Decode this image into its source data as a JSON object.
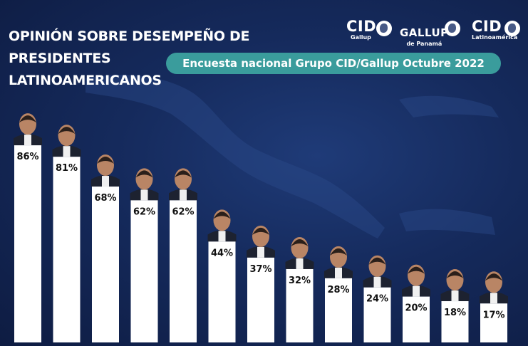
{
  "header": {
    "title_line1": "OPINIÓN SOBRE DESEMPEÑO DE PRESIDENTES",
    "title_line2": "LATINOAMERICANOS",
    "subtitle": "Encuesta nacional Grupo CID/Gallup Octubre 2022"
  },
  "logos": {
    "cid_gallup": {
      "name": "CID",
      "caption": "Gallup"
    },
    "gallup_panama": {
      "name": "GALLUP",
      "caption": "de Panamá"
    },
    "cid_latinoamerica": {
      "name": "CID",
      "caption": "Latinoamérica"
    }
  },
  "colors": {
    "background": "#152a5c",
    "bar": "#ffffff",
    "pill": "#3a9c9c",
    "text": "#ffffff"
  },
  "chart_data": {
    "type": "bar",
    "categories": [
      "",
      "",
      "",
      "",
      "",
      "",
      "",
      "",
      "",
      "",
      "",
      "",
      ""
    ],
    "values": [
      86,
      81,
      68,
      62,
      62,
      44,
      37,
      32,
      28,
      24,
      20,
      18,
      17
    ],
    "labels": [
      "86%",
      "81%",
      "68%",
      "62%",
      "62%",
      "44%",
      "37%",
      "32%",
      "28%",
      "24%",
      "20%",
      "18%",
      "17%"
    ],
    "unit": "%",
    "ylim": [
      0,
      100
    ],
    "grid": false,
    "legend": "none"
  }
}
